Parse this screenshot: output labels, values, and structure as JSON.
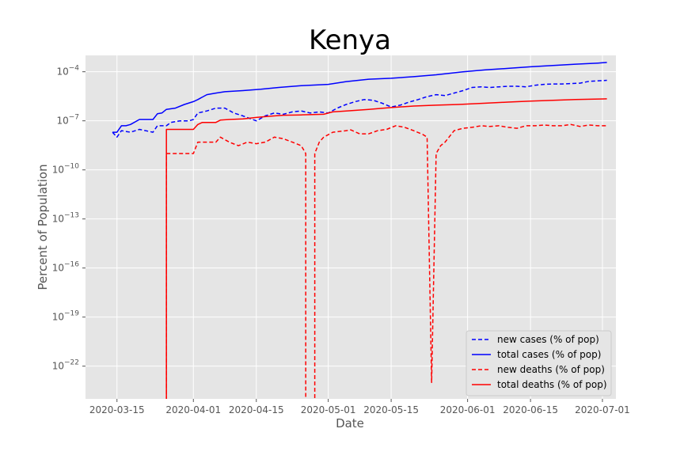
{
  "chart_data": {
    "type": "line",
    "title": "Kenya",
    "xlabel": "Date",
    "ylabel": "Percent of Population",
    "x_axis": {
      "type": "date",
      "range": [
        "2020-03-08",
        "2020-07-04"
      ],
      "ticks": [
        "2020-03-15",
        "2020-04-01",
        "2020-04-15",
        "2020-05-01",
        "2020-05-15",
        "2020-06-01",
        "2020-06-15",
        "2020-07-01"
      ]
    },
    "y_axis": {
      "scale": "log",
      "range": [
        1e-24,
        0.001
      ],
      "ticks": [
        {
          "value": 1e-22,
          "base": "10",
          "exp": "−22"
        },
        {
          "value": 1e-19,
          "base": "10",
          "exp": "−19"
        },
        {
          "value": 1e-16,
          "base": "10",
          "exp": "−16"
        },
        {
          "value": 1e-13,
          "base": "10",
          "exp": "−13"
        },
        {
          "value": 1e-10,
          "base": "10",
          "exp": "−10"
        },
        {
          "value": 1e-07,
          "base": "10",
          "exp": "−7"
        },
        {
          "value": 0.0001,
          "base": "10",
          "exp": "−4"
        }
      ]
    },
    "grid": true,
    "legend_position": "lower right",
    "series": [
      {
        "name": "new cases (% of pop)",
        "color": "#0000ff",
        "style": "dashed",
        "points": [
          [
            "2020-03-14",
            2e-08
          ],
          [
            "2020-03-15",
            1e-08
          ],
          [
            "2020-03-16",
            2.5e-08
          ],
          [
            "2020-03-18",
            2e-08
          ],
          [
            "2020-03-20",
            3e-08
          ],
          [
            "2020-03-23",
            2e-08
          ],
          [
            "2020-03-24",
            5e-08
          ],
          [
            "2020-03-26",
            5e-08
          ],
          [
            "2020-03-27",
            8e-08
          ],
          [
            "2020-03-29",
            1e-07
          ],
          [
            "2020-03-31",
            1e-07
          ],
          [
            "2020-04-01",
            1.2e-07
          ],
          [
            "2020-04-02",
            3e-07
          ],
          [
            "2020-04-04",
            4e-07
          ],
          [
            "2020-04-06",
            6e-07
          ],
          [
            "2020-04-08",
            6e-07
          ],
          [
            "2020-04-10",
            3e-07
          ],
          [
            "2020-04-12",
            2e-07
          ],
          [
            "2020-04-15",
            1e-07
          ],
          [
            "2020-04-17",
            2e-07
          ],
          [
            "2020-04-19",
            3e-07
          ],
          [
            "2020-04-21",
            2.5e-07
          ],
          [
            "2020-04-23",
            3.5e-07
          ],
          [
            "2020-04-25",
            4e-07
          ],
          [
            "2020-04-27",
            3e-07
          ],
          [
            "2020-04-29",
            3.5e-07
          ],
          [
            "2020-05-01",
            3e-07
          ],
          [
            "2020-05-03",
            6e-07
          ],
          [
            "2020-05-05",
            1e-06
          ],
          [
            "2020-05-07",
            1.5e-06
          ],
          [
            "2020-05-09",
            2e-06
          ],
          [
            "2020-05-11",
            1.8e-06
          ],
          [
            "2020-05-13",
            1.2e-06
          ],
          [
            "2020-05-15",
            7e-07
          ],
          [
            "2020-05-17",
            9e-07
          ],
          [
            "2020-05-19",
            1.4e-06
          ],
          [
            "2020-05-21",
            2e-06
          ],
          [
            "2020-05-23",
            3e-06
          ],
          [
            "2020-05-25",
            4e-06
          ],
          [
            "2020-05-27",
            3.5e-06
          ],
          [
            "2020-05-29",
            5e-06
          ],
          [
            "2020-05-31",
            7e-06
          ],
          [
            "2020-06-02",
            1.1e-05
          ],
          [
            "2020-06-04",
            1.2e-05
          ],
          [
            "2020-06-06",
            1.1e-05
          ],
          [
            "2020-06-08",
            1.2e-05
          ],
          [
            "2020-06-10",
            1.3e-05
          ],
          [
            "2020-06-12",
            1.3e-05
          ],
          [
            "2020-06-14",
            1.2e-05
          ],
          [
            "2020-06-16",
            1.5e-05
          ],
          [
            "2020-06-18",
            1.7e-05
          ],
          [
            "2020-06-20",
            1.8e-05
          ],
          [
            "2020-06-22",
            1.8e-05
          ],
          [
            "2020-06-24",
            1.9e-05
          ],
          [
            "2020-06-26",
            2e-05
          ],
          [
            "2020-06-28",
            2.6e-05
          ],
          [
            "2020-06-30",
            2.8e-05
          ],
          [
            "2020-07-02",
            3e-05
          ]
        ]
      },
      {
        "name": "total cases (% of pop)",
        "color": "#0000ff",
        "style": "solid",
        "points": [
          [
            "2020-03-14",
            2e-08
          ],
          [
            "2020-03-15",
            2e-08
          ],
          [
            "2020-03-16",
            5e-08
          ],
          [
            "2020-03-17",
            5e-08
          ],
          [
            "2020-03-18",
            6e-08
          ],
          [
            "2020-03-20",
            1.2e-07
          ],
          [
            "2020-03-23",
            1.2e-07
          ],
          [
            "2020-03-24",
            2.7e-07
          ],
          [
            "2020-03-25",
            3e-07
          ],
          [
            "2020-03-26",
            5e-07
          ],
          [
            "2020-03-28",
            6e-07
          ],
          [
            "2020-03-30",
            1e-06
          ],
          [
            "2020-04-01",
            1.5e-06
          ],
          [
            "2020-04-02",
            2e-06
          ],
          [
            "2020-04-04",
            4e-06
          ],
          [
            "2020-04-06",
            5e-06
          ],
          [
            "2020-04-08",
            6e-06
          ],
          [
            "2020-04-12",
            7e-06
          ],
          [
            "2020-04-16",
            8.5e-06
          ],
          [
            "2020-04-20",
            1.1e-05
          ],
          [
            "2020-04-25",
            1.4e-05
          ],
          [
            "2020-05-01",
            1.7e-05
          ],
          [
            "2020-05-05",
            2.5e-05
          ],
          [
            "2020-05-10",
            3.5e-05
          ],
          [
            "2020-05-15",
            4e-05
          ],
          [
            "2020-05-20",
            5e-05
          ],
          [
            "2020-05-25",
            6.5e-05
          ],
          [
            "2020-05-31",
            0.0001
          ],
          [
            "2020-06-05",
            0.00013
          ],
          [
            "2020-06-10",
            0.00016
          ],
          [
            "2020-06-15",
            0.0002
          ],
          [
            "2020-06-20",
            0.00024
          ],
          [
            "2020-06-25",
            0.00029
          ],
          [
            "2020-06-30",
            0.00034
          ],
          [
            "2020-07-02",
            0.00037
          ]
        ]
      },
      {
        "name": "new deaths (% of pop)",
        "color": "#ff0000",
        "style": "dashed",
        "points": [
          [
            "2020-03-26",
            1e-30
          ],
          [
            "2020-03-26",
            1e-09
          ],
          [
            "2020-03-28",
            1e-09
          ],
          [
            "2020-03-31",
            1e-09
          ],
          [
            "2020-04-01",
            1e-09
          ],
          [
            "2020-04-02",
            5e-09
          ],
          [
            "2020-04-04",
            5e-09
          ],
          [
            "2020-04-06",
            5e-09
          ],
          [
            "2020-04-07",
            1e-08
          ],
          [
            "2020-04-09",
            5e-09
          ],
          [
            "2020-04-11",
            3e-09
          ],
          [
            "2020-04-13",
            5e-09
          ],
          [
            "2020-04-15",
            4e-09
          ],
          [
            "2020-04-17",
            5e-09
          ],
          [
            "2020-04-19",
            1e-08
          ],
          [
            "2020-04-21",
            8e-09
          ],
          [
            "2020-04-23",
            5e-09
          ],
          [
            "2020-04-25",
            3e-09
          ],
          [
            "2020-04-26",
            1e-09
          ],
          [
            "2020-04-26",
            1e-30
          ],
          [
            "2020-04-28",
            1e-30
          ],
          [
            "2020-04-28",
            1e-09
          ],
          [
            "2020-04-29",
            5e-09
          ],
          [
            "2020-04-30",
            1e-08
          ],
          [
            "2020-05-02",
            2e-08
          ],
          [
            "2020-05-05",
            2.5e-08
          ],
          [
            "2020-05-06",
            2.8e-08
          ],
          [
            "2020-05-08",
            1.6e-08
          ],
          [
            "2020-05-10",
            1.6e-08
          ],
          [
            "2020-05-12",
            2.5e-08
          ],
          [
            "2020-05-14",
            3e-08
          ],
          [
            "2020-05-16",
            5e-08
          ],
          [
            "2020-05-18",
            4e-08
          ],
          [
            "2020-05-20",
            2.5e-08
          ],
          [
            "2020-05-22",
            1.5e-08
          ],
          [
            "2020-05-23",
            1e-08
          ],
          [
            "2020-05-24",
            1e-23
          ],
          [
            "2020-05-25",
            1e-09
          ],
          [
            "2020-05-26",
            3e-09
          ],
          [
            "2020-05-27",
            5e-09
          ],
          [
            "2020-05-29",
            2.5e-08
          ],
          [
            "2020-05-31",
            3.5e-08
          ],
          [
            "2020-06-02",
            4e-08
          ],
          [
            "2020-06-04",
            5e-08
          ],
          [
            "2020-06-06",
            4.5e-08
          ],
          [
            "2020-06-08",
            5e-08
          ],
          [
            "2020-06-10",
            4e-08
          ],
          [
            "2020-06-12",
            3.5e-08
          ],
          [
            "2020-06-14",
            5e-08
          ],
          [
            "2020-06-16",
            5e-08
          ],
          [
            "2020-06-18",
            5.5e-08
          ],
          [
            "2020-06-20",
            5e-08
          ],
          [
            "2020-06-22",
            5e-08
          ],
          [
            "2020-06-24",
            6e-08
          ],
          [
            "2020-06-26",
            4.5e-08
          ],
          [
            "2020-06-28",
            5.5e-08
          ],
          [
            "2020-06-30",
            5e-08
          ],
          [
            "2020-07-02",
            5e-08
          ]
        ]
      },
      {
        "name": "total deaths (% of pop)",
        "color": "#ff0000",
        "style": "solid",
        "points": [
          [
            "2020-03-26",
            1e-30
          ],
          [
            "2020-03-26",
            3e-08
          ],
          [
            "2020-04-01",
            3e-08
          ],
          [
            "2020-04-02",
            6e-08
          ],
          [
            "2020-04-03",
            8e-08
          ],
          [
            "2020-04-06",
            8e-08
          ],
          [
            "2020-04-07",
            1.1e-07
          ],
          [
            "2020-04-09",
            1.2e-07
          ],
          [
            "2020-04-12",
            1.3e-07
          ],
          [
            "2020-04-15",
            1.6e-07
          ],
          [
            "2020-04-18",
            1.9e-07
          ],
          [
            "2020-04-21",
            2.2e-07
          ],
          [
            "2020-04-25",
            2.3e-07
          ],
          [
            "2020-04-30",
            2.5e-07
          ],
          [
            "2020-05-02",
            3.5e-07
          ],
          [
            "2020-05-05",
            4e-07
          ],
          [
            "2020-05-10",
            5e-07
          ],
          [
            "2020-05-15",
            6.5e-07
          ],
          [
            "2020-05-20",
            8e-07
          ],
          [
            "2020-05-25",
            9e-07
          ],
          [
            "2020-05-30",
            1e-06
          ],
          [
            "2020-06-05",
            1.2e-06
          ],
          [
            "2020-06-10",
            1.4e-06
          ],
          [
            "2020-06-15",
            1.6e-06
          ],
          [
            "2020-06-20",
            1.8e-06
          ],
          [
            "2020-06-25",
            2e-06
          ],
          [
            "2020-07-02",
            2.2e-06
          ]
        ]
      }
    ]
  }
}
